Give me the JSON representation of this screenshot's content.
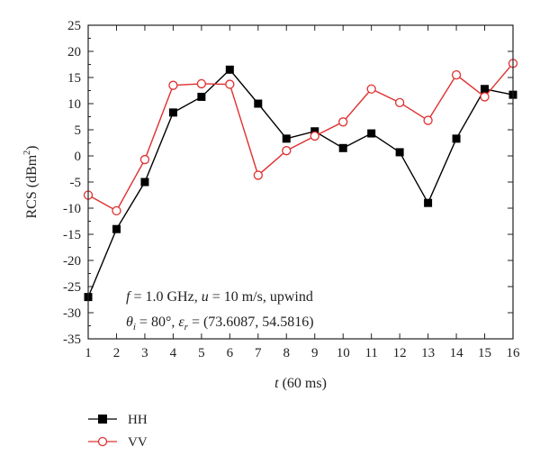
{
  "chart_data": {
    "type": "line",
    "xlabel": "t (60 ms)",
    "ylabel": "RCS (dBm²)",
    "xlim": [
      1,
      16
    ],
    "ylim": [
      -35,
      25
    ],
    "x_ticks": [
      1,
      2,
      3,
      4,
      5,
      6,
      7,
      8,
      9,
      10,
      11,
      12,
      13,
      14,
      15,
      16
    ],
    "y_ticks": [
      25,
      20,
      15,
      10,
      5,
      0,
      -5,
      -10,
      -15,
      -20,
      -25,
      -30,
      -35
    ],
    "x": [
      1,
      2,
      3,
      4,
      5,
      6,
      7,
      8,
      9,
      10,
      11,
      12,
      13,
      14,
      15,
      16
    ],
    "series": [
      {
        "name": "HH",
        "color": "#000000",
        "marker": "filled-square",
        "values": [
          -27,
          -14,
          -5,
          8.3,
          11.3,
          16.5,
          10,
          3.3,
          4.7,
          1.5,
          4.3,
          0.7,
          -9,
          3.3,
          12.8,
          11.7
        ]
      },
      {
        "name": "VV",
        "color": "#e03030",
        "marker": "open-circle",
        "values": [
          -7.5,
          -10.5,
          -0.7,
          13.5,
          13.8,
          13.7,
          -3.7,
          1,
          3.8,
          6.5,
          12.8,
          10.2,
          6.8,
          15.5,
          11.3,
          17.7
        ]
      }
    ],
    "annotations": [
      "f = 1.0 GHz, u = 10 m/s, upwind",
      "θi = 80°, εr = (73.6087, 54.5816)"
    ],
    "legend_placement": "bottom-left, below plot",
    "grid": false
  }
}
